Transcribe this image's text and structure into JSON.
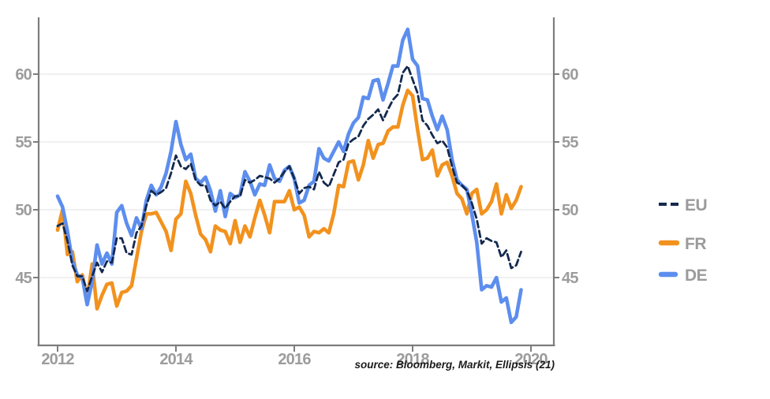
{
  "chart_data": {
    "type": "line",
    "title": "",
    "x_unit": "month",
    "x_range": [
      "2012-01",
      "2019-11"
    ],
    "x_tick_labels": [
      "2012",
      "2014",
      "2016",
      "2018",
      "2020"
    ],
    "y_tick_labels": [
      "45",
      "50",
      "55",
      "60"
    ],
    "y_axis_side": "both",
    "ylim": [
      40,
      64.5
    ],
    "grid": "horizontal",
    "legend_position": "right",
    "source_note": "source: Bloomberg, Markit, Ellipsis (21)",
    "series": [
      {
        "name": "EU",
        "style": "dashed",
        "color": "#14294e",
        "values": [
          48.8,
          49.0,
          47.7,
          45.9,
          45.1,
          45.1,
          44.0,
          45.1,
          46.1,
          45.4,
          46.2,
          46.1,
          47.9,
          47.9,
          46.8,
          46.7,
          48.3,
          48.8,
          50.3,
          51.4,
          51.1,
          51.3,
          51.6,
          52.7,
          54.0,
          53.2,
          53.0,
          53.4,
          52.2,
          51.8,
          51.8,
          50.7,
          50.3,
          50.6,
          50.1,
          50.6,
          51.0,
          51.0,
          52.2,
          52.0,
          52.2,
          52.5,
          52.4,
          52.3,
          52.0,
          52.3,
          52.8,
          53.2,
          52.3,
          51.2,
          51.6,
          51.7,
          51.5,
          52.8,
          52.0,
          51.7,
          52.6,
          53.5,
          53.7,
          54.9,
          55.2,
          55.4,
          56.2,
          56.7,
          57.0,
          57.4,
          56.6,
          57.4,
          58.1,
          58.5,
          60.1,
          60.6,
          59.6,
          58.6,
          56.6,
          56.2,
          55.5,
          54.9,
          55.1,
          54.6,
          53.2,
          52.0,
          51.8,
          51.4,
          50.5,
          49.3,
          47.5,
          47.9,
          47.7,
          47.6,
          46.5,
          47.0,
          45.7,
          45.9,
          46.9
        ]
      },
      {
        "name": "FR",
        "style": "solid",
        "color": "#f2921e",
        "values": [
          48.5,
          50.0,
          46.7,
          46.9,
          44.7,
          45.2,
          43.4,
          46.0,
          42.7,
          43.7,
          44.5,
          44.6,
          42.9,
          43.9,
          44.0,
          44.4,
          46.4,
          48.4,
          49.7,
          49.7,
          49.8,
          49.1,
          48.4,
          47.0,
          49.3,
          49.7,
          52.1,
          51.2,
          49.6,
          48.2,
          47.8,
          46.9,
          48.8,
          48.5,
          48.4,
          47.5,
          49.2,
          47.6,
          48.8,
          48.0,
          49.4,
          50.7,
          49.6,
          48.3,
          50.6,
          50.6,
          50.6,
          51.4,
          50.0,
          50.2,
          49.6,
          48.0,
          48.4,
          48.3,
          48.6,
          48.3,
          49.7,
          51.8,
          51.7,
          53.5,
          53.6,
          52.2,
          53.3,
          55.1,
          53.8,
          54.8,
          54.9,
          55.8,
          56.1,
          56.1,
          57.7,
          58.8,
          58.4,
          55.9,
          53.7,
          53.8,
          54.4,
          52.5,
          53.3,
          53.5,
          52.5,
          51.2,
          50.8,
          49.7,
          51.2,
          51.5,
          49.7,
          50.0,
          50.6,
          51.9,
          49.7,
          51.1,
          50.1,
          50.7,
          51.7
        ]
      },
      {
        "name": "DE",
        "style": "solid",
        "color": "#5d8eee",
        "values": [
          51.0,
          50.2,
          48.4,
          46.2,
          45.2,
          45.0,
          43.0,
          44.7,
          47.4,
          46.0,
          46.8,
          46.0,
          49.8,
          50.3,
          49.0,
          48.1,
          49.4,
          48.6,
          50.7,
          51.8,
          51.1,
          51.7,
          52.7,
          54.3,
          56.5,
          54.8,
          53.7,
          54.1,
          52.3,
          52.0,
          52.4,
          51.4,
          49.9,
          51.4,
          49.5,
          51.2,
          50.9,
          51.1,
          52.8,
          52.1,
          51.1,
          51.9,
          51.8,
          53.3,
          52.3,
          52.1,
          52.9,
          53.2,
          52.3,
          50.5,
          50.7,
          51.8,
          52.1,
          54.5,
          53.8,
          53.6,
          54.3,
          55.0,
          54.3,
          55.6,
          56.4,
          56.8,
          58.3,
          58.2,
          59.5,
          59.6,
          58.1,
          59.3,
          60.6,
          60.6,
          62.5,
          63.3,
          61.1,
          60.6,
          58.2,
          58.1,
          56.9,
          55.9,
          56.9,
          55.9,
          53.7,
          52.2,
          51.8,
          51.5,
          49.7,
          47.6,
          44.1,
          44.4,
          44.3,
          45.0,
          43.2,
          43.5,
          41.7,
          42.1,
          44.1
        ]
      }
    ]
  }
}
